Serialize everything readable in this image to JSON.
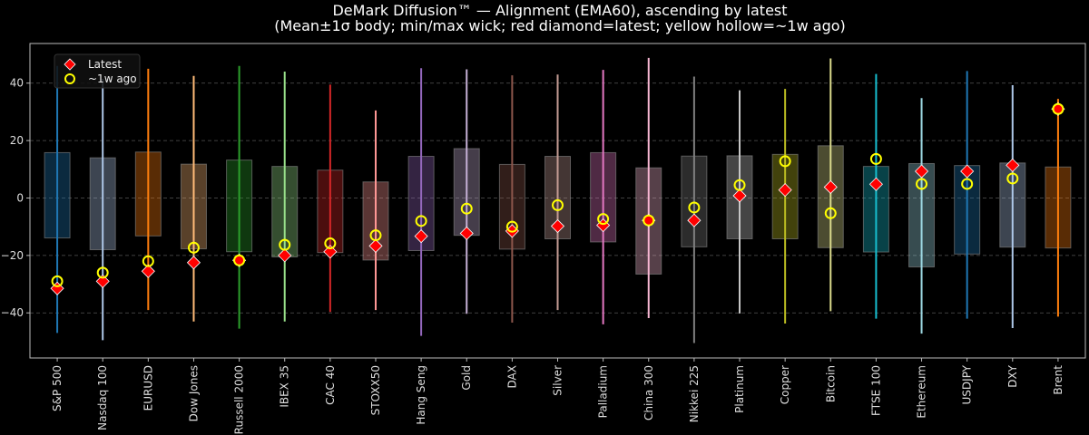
{
  "chart_data": {
    "type": "box-range",
    "title": "DeMark Diffusion™ — Alignment (EMA60), ascending by latest",
    "subtitle": "(Mean±1σ body; min/max wick; red diamond=latest; yellow hollow=~1w ago)",
    "xlabel": "",
    "ylabel": "",
    "ylim": [
      -55.7,
      53.8
    ],
    "yticks": [
      40,
      20,
      0,
      -20,
      -40
    ],
    "ytick_labels": [
      "40",
      "20",
      "0",
      "−20",
      "−40"
    ],
    "grid": "horizontal dashed",
    "legend": {
      "placement": "top-left",
      "entries": [
        {
          "label": "Latest",
          "marker": "diamond",
          "color": "#ff0000"
        },
        {
          "label": "~1w ago",
          "marker": "hollow-circle",
          "color": "#ffff00"
        }
      ]
    },
    "categories": [
      "S&P 500",
      "Nasdaq 100",
      "EURUSD",
      "Dow Jones",
      "Russell 2000",
      "IBEX 35",
      "CAC 40",
      "STOXX50",
      "Hang Seng",
      "Gold",
      "DAX",
      "Silver",
      "Palladium",
      "China 300",
      "Nikkei 225",
      "Platinum",
      "Copper",
      "Bitcoin",
      "FTSE 100",
      "Ethereum",
      "USDJPY",
      "DXY",
      "Brent"
    ],
    "body_top": [
      15.8,
      14.0,
      16.0,
      11.8,
      13.2,
      11.0,
      9.7,
      5.6,
      14.5,
      17.2,
      11.7,
      14.5,
      15.8,
      10.5,
      14.6,
      14.7,
      15.2,
      18.2,
      11.0,
      12.0,
      11.3,
      12.2,
      10.8
    ],
    "body_bottom": [
      -13.9,
      -18.0,
      -13.2,
      -17.7,
      -18.7,
      -20.5,
      -19.0,
      -21.6,
      -18.3,
      -13.0,
      -17.8,
      -14.2,
      -15.3,
      -26.5,
      -17.0,
      -14.2,
      -14.2,
      -17.3,
      -18.8,
      -24.0,
      -19.5,
      -17.1,
      -17.4
    ],
    "wick_max": [
      46.0,
      41.5,
      45.0,
      42.5,
      46.0,
      44.0,
      39.5,
      30.5,
      45.2,
      44.8,
      42.7,
      43.0,
      44.6,
      48.8,
      42.3,
      37.5,
      38.0,
      48.6,
      43.2,
      34.8,
      44.2,
      39.3,
      34.5
    ],
    "wick_min": [
      -47.0,
      -49.5,
      -39.0,
      -43.0,
      -45.5,
      -43.0,
      -39.7,
      -39.0,
      -48.0,
      -40.3,
      -43.4,
      -39.0,
      -44.0,
      -41.8,
      -50.5,
      -40.2,
      -43.7,
      -39.4,
      -42.0,
      -47.2,
      -42.0,
      -45.3,
      -41.3
    ],
    "latest": [
      -31.5,
      -29.0,
      -25.5,
      -22.5,
      -21.7,
      -20.0,
      -18.7,
      -16.7,
      -13.3,
      -12.3,
      -11.5,
      -9.8,
      -9.5,
      -7.8,
      -7.8,
      0.8,
      2.8,
      3.8,
      4.8,
      9.3,
      9.3,
      11.4,
      31.0
    ],
    "week_ago": [
      -29.0,
      -26.0,
      -22.0,
      -17.3,
      -21.7,
      -16.3,
      -15.8,
      -13.0,
      -8.0,
      -3.7,
      -10.0,
      -2.5,
      -7.3,
      -7.8,
      -3.3,
      4.5,
      12.8,
      -5.3,
      13.6,
      4.9,
      4.9,
      6.8,
      31.0
    ],
    "colors": [
      "#1f77b4",
      "#aec7e8",
      "#ff7f0e",
      "#ffbb78",
      "#2ca02c",
      "#98df8a",
      "#d62728",
      "#ff9896",
      "#9467bd",
      "#c5b0d5",
      "#8c564b",
      "#c49c94",
      "#e377c2",
      "#f7b6d2",
      "#7f7f7f",
      "#c7c7c7",
      "#bcbd22",
      "#dbdb8d",
      "#17becf",
      "#9edae5",
      "#1f77b4",
      "#aec7e8",
      "#ff7f0e"
    ]
  }
}
